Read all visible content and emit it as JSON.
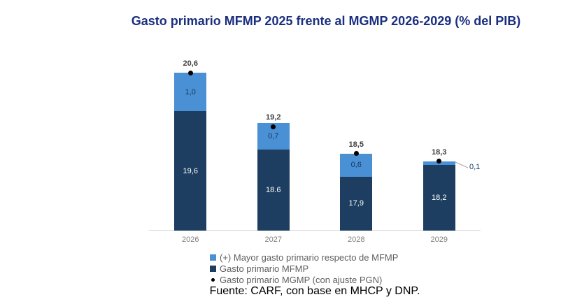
{
  "title": "Gasto primario MFMP 2025 frente al MGMP 2026-2029 (% del PIB)",
  "source_note": "Fuente: CARF, con base en MHCP y DNP.",
  "legend": {
    "items": [
      {
        "label": "(+) Mayor gasto primario respecto de MFMP",
        "marker": "square",
        "color": "#4A90D5"
      },
      {
        "label": "Gasto primario MFMP",
        "marker": "square",
        "color": "#1D3E60"
      },
      {
        "label": "Gasto primario MGMP (con ajuste PGN)",
        "marker": "dot",
        "color": "#000000"
      }
    ]
  },
  "colors": {
    "title": "#1B2F80",
    "bar_dark": "#1D3E60",
    "bar_light": "#4A90D5",
    "marker_dot": "#000000",
    "axis_line": "#D9D9D9",
    "x_labels": "#7F7F7F",
    "total_labels": "#404040",
    "inside_light_labels": "#17375E",
    "legend_text": "#5F5F5F",
    "leader_line": "#A6A6A6"
  },
  "chart_data": {
    "type": "bar",
    "subtype": "stacked",
    "title": "Gasto primario MFMP 2025 frente al MGMP 2026-2029 (% del PIB)",
    "categories": [
      "2026",
      "2027",
      "2028",
      "2029"
    ],
    "series": [
      {
        "name": "Gasto primario MFMP",
        "color": "#1D3E60",
        "values": [
          19.6,
          18.6,
          17.9,
          18.2
        ],
        "labels": [
          "19,6",
          "18.6",
          "17,9",
          "18,2"
        ]
      },
      {
        "name": "(+) Mayor gasto primario respecto de MFMP",
        "color": "#4A90D5",
        "values": [
          1.0,
          0.7,
          0.6,
          0.1
        ],
        "labels": [
          "1,0",
          "0,7",
          "0,6",
          "0,1"
        ]
      }
    ],
    "markers": {
      "name": "Gasto primario MGMP (con ajuste PGN)",
      "color": "#000000",
      "values": [
        20.6,
        19.2,
        18.5,
        18.3
      ],
      "labels": [
        "20,6",
        "19,2",
        "18,5",
        "18,3"
      ]
    },
    "xlabel": "",
    "ylabel": "% del PIB",
    "ylim": [
      16.5,
      21.0
    ],
    "grid": false,
    "legend_position": "bottom",
    "outside_label_index": 3
  }
}
